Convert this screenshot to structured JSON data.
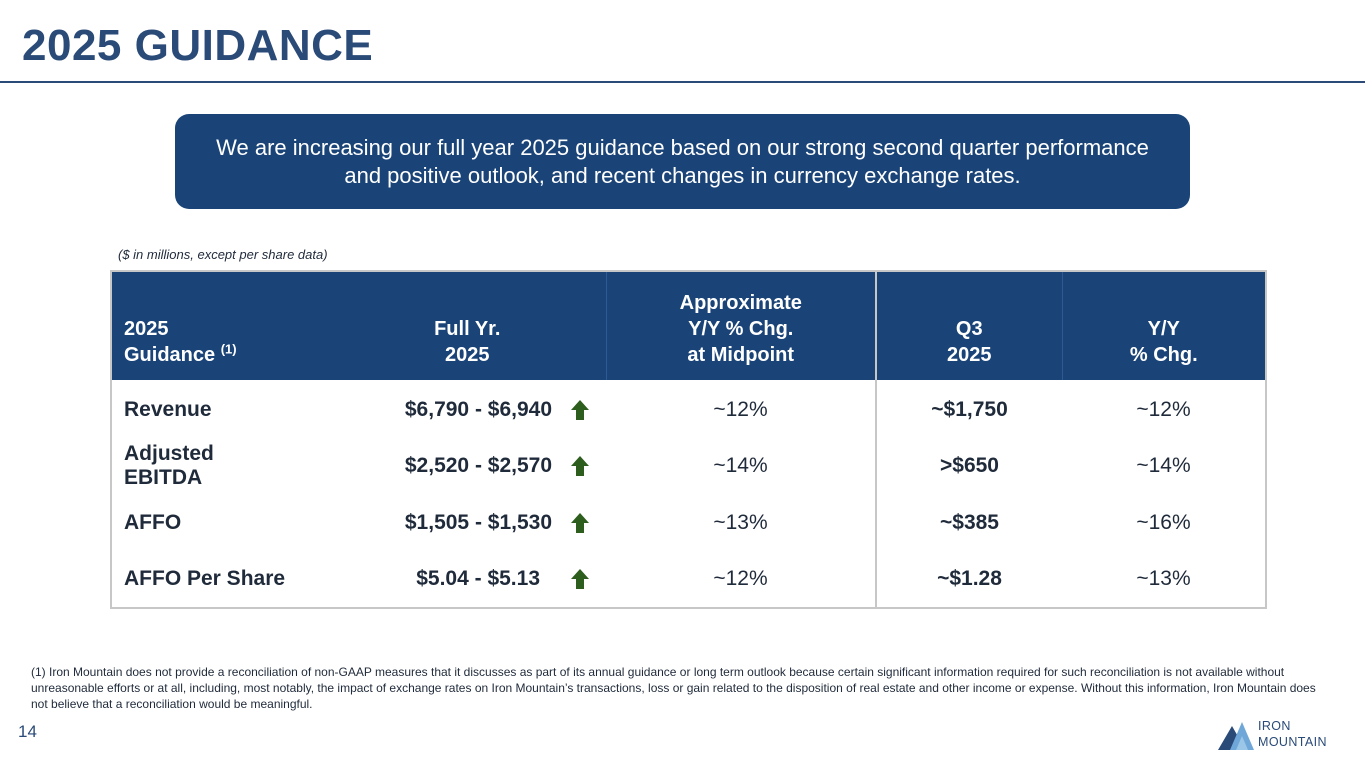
{
  "page": {
    "title": "2025 GUIDANCE",
    "page_number": "14"
  },
  "callout": {
    "text": "We are increasing our full year 2025 guidance based on our strong second quarter performance and positive outlook, and recent changes in currency exchange rates."
  },
  "units_note": "($ in millions, except per share data)",
  "table": {
    "headers": {
      "guidance_line1": "2025",
      "guidance_line2": "Guidance",
      "guidance_footnote": "(1)",
      "full_year_line1": "Full Yr.",
      "full_year_line2": "2025",
      "yy_line1": "Approximate",
      "yy_line2": "Y/Y % Chg.",
      "yy_line3": "at Midpoint",
      "q3_line1": "Q3",
      "q3_line2": "2025",
      "q3yy_line1": "Y/Y",
      "q3yy_line2": "% Chg."
    },
    "rows": [
      {
        "metric": "Revenue",
        "range": "$6,790 - $6,940",
        "yy": "~12%",
        "q3": "~$1,750",
        "q3_yy": "~12%"
      },
      {
        "metric": "Adjusted EBITDA",
        "range": "$2,520 - $2,570",
        "yy": "~14%",
        "q3": ">$650",
        "q3_yy": "~14%"
      },
      {
        "metric": "AFFO",
        "range": "$1,505 - $1,530",
        "yy": "~13%",
        "q3": "~$385",
        "q3_yy": "~16%"
      },
      {
        "metric": "AFFO Per Share",
        "range": "$5.04 - $5.13",
        "yy": "~12%",
        "q3": "~$1.28",
        "q3_yy": "~13%"
      }
    ],
    "icon": "up-arrow-icon"
  },
  "footnote": "(1) Iron Mountain does not provide a reconciliation of non-GAAP measures that it discusses as part of its annual guidance or long term outlook because certain significant information required for such reconciliation is not available without unreasonable efforts or at all, including, most notably, the impact of exchange rates on Iron Mountain’s transactions, loss or gain related to the disposition of real estate and other income or expense. Without this information, Iron Mountain does not believe that a reconciliation would be meaningful.",
  "logo": {
    "line1": "IRON",
    "line2": "MOUNTAIN"
  },
  "colors": {
    "brand_navy": "#1a4478",
    "title_blue": "#2a4a78",
    "arrow_green": "#2e5e1e",
    "border_gray": "#c7c7c7"
  }
}
